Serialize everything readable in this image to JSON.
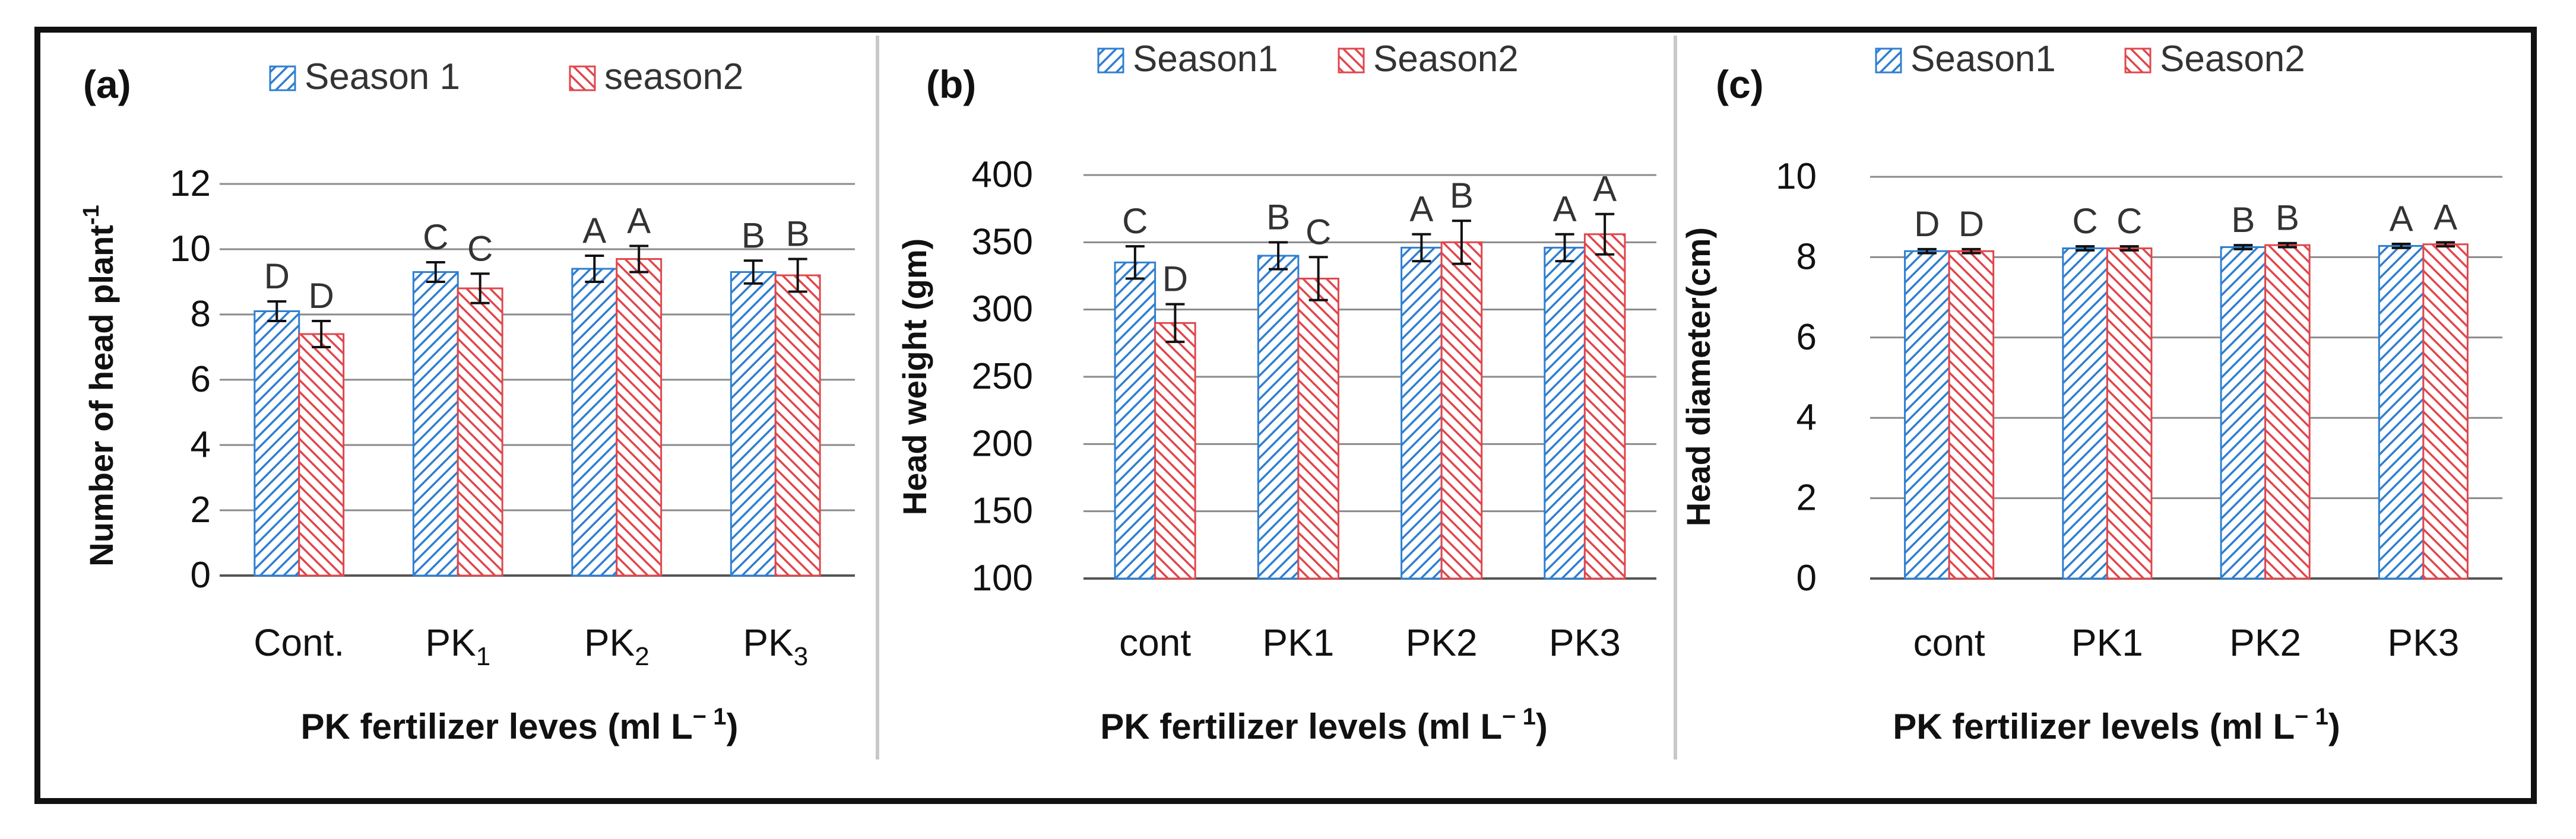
{
  "colors": {
    "season1": "#2f7fd0",
    "season2": "#e0474c",
    "grid": "#8a8a8a",
    "axis": "#555555",
    "text": "#111111"
  },
  "chart_data": [
    {
      "type": "bar",
      "panel_label": "(a)",
      "legend": [
        "Season 1",
        "season2"
      ],
      "categories": [
        "Cont.",
        "PK1",
        "PK2",
        "PK3"
      ],
      "category_labels": [
        {
          "main": "Cont.",
          "sub": ""
        },
        {
          "main": "PK",
          "sub": "1"
        },
        {
          "main": "PK",
          "sub": "2"
        },
        {
          "main": "PK",
          "sub": "3"
        }
      ],
      "series": [
        {
          "name": "Season 1",
          "values": [
            8.1,
            9.3,
            9.4,
            9.3
          ],
          "errors": [
            0.3,
            0.3,
            0.4,
            0.35
          ],
          "letters": [
            "D",
            "C",
            "A",
            "B"
          ]
        },
        {
          "name": "season2",
          "values": [
            7.4,
            8.8,
            9.7,
            9.2
          ],
          "errors": [
            0.4,
            0.45,
            0.4,
            0.5
          ],
          "letters": [
            "D",
            "C",
            "A",
            "B"
          ]
        }
      ],
      "ylim": [
        0,
        12
      ],
      "yticks": [
        "0",
        "2",
        "4",
        "6",
        "8",
        "10",
        "12"
      ],
      "ylabel": "Number of head plant",
      "ylabel_sup": "-1",
      "xlabel": "PK fertilizer leves (ml L",
      "xlabel_sup": "− 1",
      "xlabel_end": ")"
    },
    {
      "type": "bar",
      "panel_label": "(b)",
      "legend": [
        "Season1",
        "Season2"
      ],
      "categories": [
        "cont",
        "PK1",
        "PK2",
        "PK3"
      ],
      "category_labels": [
        {
          "main": "cont",
          "sub": ""
        },
        {
          "main": "PK1",
          "sub": ""
        },
        {
          "main": "PK2",
          "sub": ""
        },
        {
          "main": "PK3",
          "sub": ""
        }
      ],
      "series": [
        {
          "name": "Season1",
          "values": [
            335,
            340,
            346,
            346
          ],
          "errors": [
            12,
            10,
            10,
            10
          ],
          "letters": [
            "C",
            "B",
            "A",
            "A"
          ]
        },
        {
          "name": "Season2",
          "values": [
            290,
            323,
            350,
            356
          ],
          "errors": [
            14,
            16,
            16,
            15
          ],
          "letters": [
            "D",
            "C",
            "B",
            "A"
          ]
        }
      ],
      "ylim": [
        100,
        400
      ],
      "yticks": [
        "100",
        "150",
        "200",
        "250",
        "300",
        "350",
        "400"
      ],
      "ylabel": "Head weight (gm)",
      "ylabel_sup": "",
      "xlabel": "PK fertilizer levels (ml L",
      "xlabel_sup": "− 1",
      "xlabel_end": ")"
    },
    {
      "type": "bar",
      "panel_label": "(c)",
      "legend": [
        "Season1",
        "Season2"
      ],
      "categories": [
        "cont",
        "PK1",
        "PK2",
        "PK3"
      ],
      "category_labels": [
        {
          "main": "cont",
          "sub": ""
        },
        {
          "main": "PK1",
          "sub": ""
        },
        {
          "main": "PK2",
          "sub": ""
        },
        {
          "main": "PK3",
          "sub": ""
        }
      ],
      "series": [
        {
          "name": "Season1",
          "values": [
            8.15,
            8.22,
            8.25,
            8.28
          ],
          "errors": [
            0.05,
            0.05,
            0.05,
            0.05
          ],
          "letters": [
            "D",
            "C",
            "B",
            "A"
          ]
        },
        {
          "name": "Season2",
          "values": [
            8.15,
            8.22,
            8.3,
            8.32
          ],
          "errors": [
            0.05,
            0.05,
            0.05,
            0.05
          ],
          "letters": [
            "D",
            "C",
            "B",
            "A"
          ]
        }
      ],
      "ylim": [
        0,
        10
      ],
      "yticks": [
        "0",
        "2",
        "4",
        "6",
        "8",
        "10"
      ],
      "ylabel": "Head diameter(cm)",
      "ylabel_sup": "",
      "xlabel": "PK fertilizer  levels (ml L",
      "xlabel_sup": "− 1",
      "xlabel_end": ")"
    }
  ]
}
